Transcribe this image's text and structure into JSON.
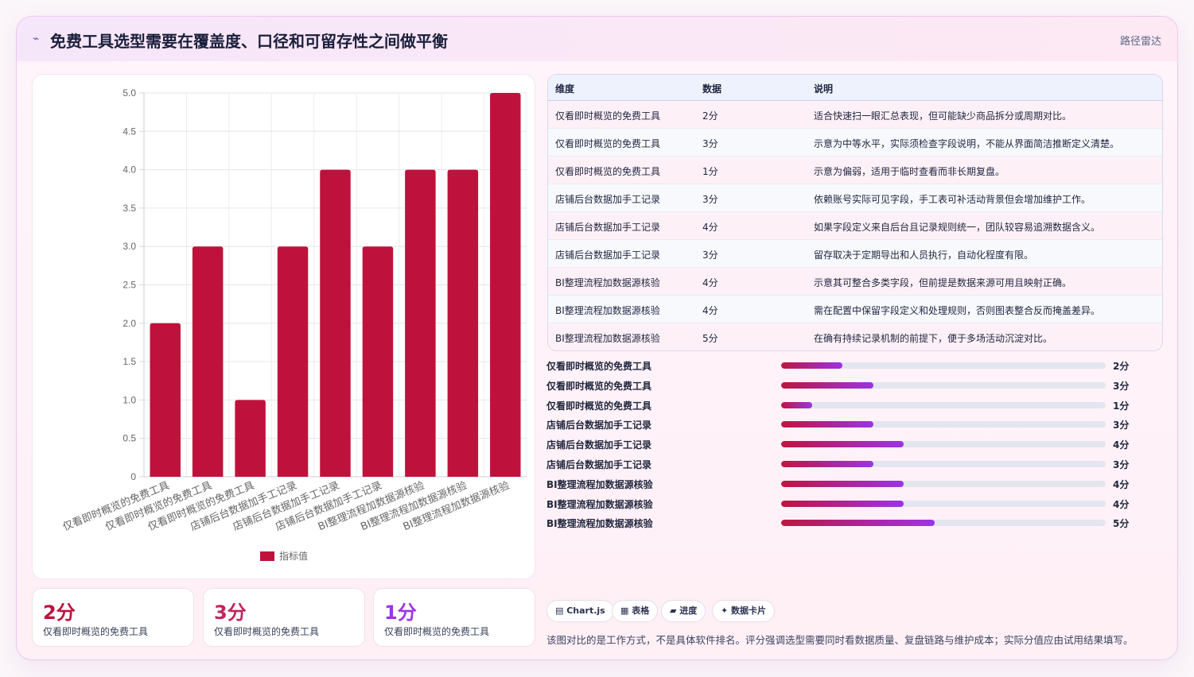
{
  "header": {
    "icon": "sparkle-icon",
    "title": "免费工具选型需要在覆盖度、口径和可留存性之间做平衡",
    "tag": "路径雷达"
  },
  "chart_data": {
    "type": "bar",
    "categories": [
      "仅看即时概览的免费工具",
      "仅看即时概览的免费工具",
      "仅看即时概览的免费工具",
      "店铺后台数据加手工记录",
      "店铺后台数据加手工记录",
      "店铺后台数据加手工记录",
      "BI整理流程加数据源核验",
      "BI整理流程加数据源核验",
      "BI整理流程加数据源核验"
    ],
    "series": [
      {
        "name": "指标值",
        "values": [
          2,
          3,
          1,
          3,
          4,
          3,
          4,
          4,
          5
        ],
        "color": "#be123c"
      }
    ],
    "ylim": [
      0,
      5
    ],
    "yticks": [
      "0",
      "0.5",
      "1.0",
      "1.5",
      "2.0",
      "2.5",
      "3.0",
      "3.5",
      "4.0",
      "4.5",
      "5.0"
    ],
    "grid": true,
    "legend": "bottom"
  },
  "table": {
    "headers": [
      "维度",
      "数据",
      "说明"
    ],
    "rows": [
      [
        "仅看即时概览的免费工具",
        "2分",
        "适合快速扫一眼汇总表现，但可能缺少商品拆分或周期对比。"
      ],
      [
        "仅看即时概览的免费工具",
        "3分",
        "示意为中等水平，实际须检查字段说明，不能从界面简洁推断定义清楚。"
      ],
      [
        "仅看即时概览的免费工具",
        "1分",
        "示意为偏弱，适用于临时查看而非长期复盘。"
      ],
      [
        "店铺后台数据加手工记录",
        "3分",
        "依赖账号实际可见字段，手工表可补活动背景但会增加维护工作。"
      ],
      [
        "店铺后台数据加手工记录",
        "4分",
        "如果字段定义来自后台且记录规则统一，团队较容易追溯数据含义。"
      ],
      [
        "店铺后台数据加手工记录",
        "3分",
        "留存取决于定期导出和人员执行，自动化程度有限。"
      ],
      [
        "BI整理流程加数据源核验",
        "4分",
        "示意其可整合多类字段，但前提是数据来源可用且映射正确。"
      ],
      [
        "BI整理流程加数据源核验",
        "4分",
        "需在配置中保留字段定义和处理规则，否则图表整合反而掩盖差异。"
      ],
      [
        "BI整理流程加数据源核验",
        "5分",
        "在确有持续记录机制的前提下，便于多场活动沉淀对比。"
      ]
    ]
  },
  "progress": {
    "max": 5,
    "items": [
      {
        "label": "仅看即时概览的免费工具",
        "value": 2,
        "display": "2分"
      },
      {
        "label": "仅看即时概览的免费工具",
        "value": 3,
        "display": "3分"
      },
      {
        "label": "仅看即时概览的免费工具",
        "value": 1,
        "display": "1分"
      },
      {
        "label": "店铺后台数据加手工记录",
        "value": 3,
        "display": "3分"
      },
      {
        "label": "店铺后台数据加手工记录",
        "value": 4,
        "display": "4分"
      },
      {
        "label": "店铺后台数据加手工记录",
        "value": 3,
        "display": "3分"
      },
      {
        "label": "BI整理流程加数据源核验",
        "value": 4,
        "display": "4分"
      },
      {
        "label": "BI整理流程加数据源核验",
        "value": 4,
        "display": "4分"
      },
      {
        "label": "BI整理流程加数据源核验",
        "value": 5,
        "display": "5分"
      }
    ]
  },
  "stats": [
    {
      "value": "2分",
      "label": "仅看即时概览的免费工具",
      "color": "#be123c"
    },
    {
      "value": "3分",
      "label": "仅看即时概览的免费工具",
      "color": "#c0265a"
    },
    {
      "value": "1分",
      "label": "仅看即时概览的免费工具",
      "color": "#9b34e6"
    }
  ],
  "chips": [
    {
      "icon": "chart-icon",
      "label": "▤ Chart.js"
    },
    {
      "icon": "table-icon",
      "label": "▦ 表格"
    },
    {
      "icon": "progress-icon",
      "label": "▰ 进度"
    },
    {
      "icon": "card-icon",
      "label": "✦ 数据卡片"
    }
  ],
  "footnote": "该图对比的是工作方式，不是具体软件排名。评分强调选型需要同时看数据质量、复盘链路与维护成本；实际分值应由试用结果填写。"
}
